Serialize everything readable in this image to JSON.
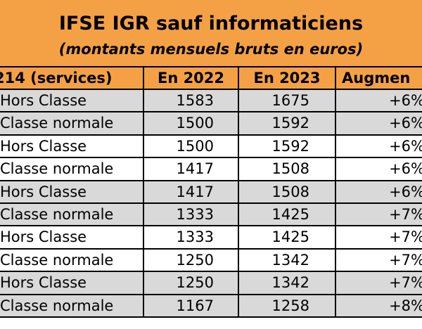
{
  "header": {
    "title": "IFSE IGR sauf informaticiens",
    "subtitle": "(montants mensuels bruts en euros)"
  },
  "table": {
    "columns": [
      "214 (services)",
      "En 2022",
      "En 2023",
      "Augmen"
    ],
    "rows": [
      [
        "Hors Classe",
        1583,
        1675,
        "+6%"
      ],
      [
        "Classe normale",
        1500,
        1592,
        "+6%"
      ],
      [
        "Hors Classe",
        1500,
        1592,
        "+6%"
      ],
      [
        "Classe normale",
        1417,
        1508,
        "+6%"
      ],
      [
        "Hors Classe",
        1417,
        1508,
        "+6%"
      ],
      [
        "Classe normale",
        1333,
        1425,
        "+7%"
      ],
      [
        "Hors Classe",
        1333,
        1425,
        "+7%"
      ],
      [
        "Classe normale",
        1250,
        1342,
        "+7%"
      ],
      [
        "Hors Classe",
        1250,
        1342,
        "+7%"
      ],
      [
        "Classe normale",
        1167,
        1258,
        "+8%"
      ]
    ]
  }
}
